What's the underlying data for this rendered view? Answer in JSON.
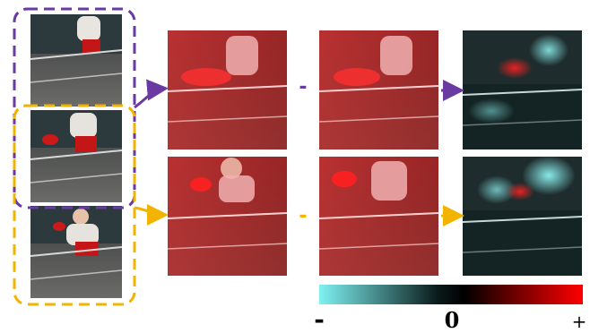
{
  "colors": {
    "purple": "#6a3aa3",
    "orange": "#f2b400",
    "cyan": "#7ff2f2",
    "black": "#000000",
    "red": "#ff0000"
  },
  "legend": {
    "minus_label": "-",
    "zero_label": "0",
    "plus_label": "+"
  },
  "operators": {
    "top_minus": "-",
    "bottom_minus": "-"
  }
}
